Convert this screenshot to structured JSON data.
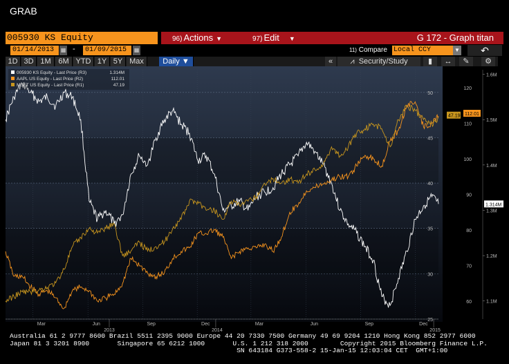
{
  "window": {
    "title": "GRAB"
  },
  "command_bar": {
    "ticker": "005930 KS Equity",
    "actions_num": "96)",
    "actions_label": "Actions",
    "edit_num": "97)",
    "edit_label": "Edit",
    "graph_title": "G 172 - Graph titan"
  },
  "date_bar": {
    "start_date": "01/14/2013",
    "end_date": "01/09/2015",
    "dash": "-",
    "compare_num": "11)",
    "compare_label": "Compare",
    "currency": "Local CCY"
  },
  "toolbar": {
    "periods": [
      "1D",
      "3D",
      "1M",
      "6M",
      "YTD",
      "1Y",
      "5Y",
      "Max"
    ],
    "frequency": "Daily",
    "collapse": "«",
    "security_study": "Security/Study"
  },
  "legend": [
    {
      "label": "005930 KS Equity - Last Price (R3)",
      "value": "1.314M",
      "color": "#ffffff"
    },
    {
      "label": "AAPL US Equity - Last Price (R2)",
      "value": "112.01",
      "color": "#f7941d"
    },
    {
      "label": "MSFT US Equity - Last Price (R1)",
      "value": "47.19",
      "color": "#c8961e"
    }
  ],
  "chart_data": {
    "type": "line",
    "x_axis": {
      "months": [
        "Mar",
        "Jun",
        "Sep",
        "Dec",
        "Mar",
        "Jun",
        "Sep",
        "Dec"
      ],
      "years": [
        "2013",
        "2014",
        "2015"
      ],
      "range": [
        "2013-01-14",
        "2015-01-09"
      ]
    },
    "axis_r1": {
      "series": "MSFT",
      "ticks": [
        25,
        30,
        35,
        40,
        45,
        50
      ],
      "range": [
        25,
        52.5
      ]
    },
    "axis_r2": {
      "series": "AAPL",
      "ticks": [
        60,
        70,
        80,
        90,
        100,
        110,
        120
      ],
      "range": [
        55,
        125
      ]
    },
    "axis_r3": {
      "series": "005930 KS",
      "ticks": [
        "1.1M",
        "1.2M",
        "1.3M",
        "1.4M",
        "1.5M",
        "1.6M"
      ],
      "range": [
        1.06,
        1.61
      ],
      "unit": "M KRW"
    },
    "last_labels": {
      "msft": "47.19",
      "aapl": "112.01",
      "samsung": "1.314M"
    },
    "series": [
      {
        "name": "005930 KS Equity - Last Price (R3)",
        "color": "#ffffff",
        "dates": [
          "2013-01-14",
          "2013-01-28",
          "2013-02-11",
          "2013-02-25",
          "2013-03-11",
          "2013-03-25",
          "2013-04-08",
          "2013-04-22",
          "2013-05-06",
          "2013-05-20",
          "2013-06-03",
          "2013-06-17",
          "2013-07-01",
          "2013-07-15",
          "2013-07-29",
          "2013-08-12",
          "2013-08-26",
          "2013-09-09",
          "2013-09-23",
          "2013-10-07",
          "2013-10-21",
          "2013-11-04",
          "2013-11-18",
          "2013-12-02",
          "2013-12-16",
          "2013-12-30",
          "2014-01-13",
          "2014-01-27",
          "2014-02-10",
          "2014-02-24",
          "2014-03-10",
          "2014-03-24",
          "2014-04-07",
          "2014-04-21",
          "2014-05-05",
          "2014-05-19",
          "2014-06-02",
          "2014-06-16",
          "2014-06-30",
          "2014-07-14",
          "2014-07-28",
          "2014-08-11",
          "2014-08-25",
          "2014-09-08",
          "2014-09-22",
          "2014-10-06",
          "2014-10-20",
          "2014-11-03",
          "2014-11-17",
          "2014-12-01",
          "2014-12-15",
          "2014-12-29",
          "2015-01-09"
        ],
        "values": [
          1.5,
          1.55,
          1.58,
          1.56,
          1.54,
          1.55,
          1.53,
          1.56,
          1.55,
          1.5,
          1.32,
          1.28,
          1.3,
          1.27,
          1.29,
          1.38,
          1.42,
          1.4,
          1.46,
          1.5,
          1.52,
          1.49,
          1.47,
          1.41,
          1.42,
          1.38,
          1.3,
          1.31,
          1.32,
          1.3,
          1.33,
          1.34,
          1.35,
          1.38,
          1.4,
          1.42,
          1.45,
          1.43,
          1.4,
          1.36,
          1.3,
          1.27,
          1.25,
          1.22,
          1.19,
          1.11,
          1.09,
          1.15,
          1.21,
          1.28,
          1.31,
          1.33,
          1.314
        ]
      },
      {
        "name": "AAPL US Equity - Last Price (R2)",
        "color": "#f7941d",
        "dates": [
          "2013-01-14",
          "2013-01-28",
          "2013-02-11",
          "2013-02-25",
          "2013-03-11",
          "2013-03-25",
          "2013-04-08",
          "2013-04-22",
          "2013-05-06",
          "2013-05-20",
          "2013-06-03",
          "2013-06-17",
          "2013-07-01",
          "2013-07-15",
          "2013-07-29",
          "2013-08-12",
          "2013-08-26",
          "2013-09-09",
          "2013-09-23",
          "2013-10-07",
          "2013-10-21",
          "2013-11-04",
          "2013-11-18",
          "2013-12-02",
          "2013-12-16",
          "2013-12-30",
          "2014-01-13",
          "2014-01-27",
          "2014-02-10",
          "2014-02-24",
          "2014-03-10",
          "2014-03-24",
          "2014-04-07",
          "2014-04-21",
          "2014-05-05",
          "2014-05-19",
          "2014-06-02",
          "2014-06-16",
          "2014-06-30",
          "2014-07-14",
          "2014-07-28",
          "2014-08-11",
          "2014-08-25",
          "2014-09-08",
          "2014-09-22",
          "2014-10-06",
          "2014-10-20",
          "2014-11-03",
          "2014-11-17",
          "2014-12-01",
          "2014-12-15",
          "2014-12-29",
          "2015-01-09"
        ],
        "values": [
          74,
          67,
          67,
          64,
          62,
          63,
          61,
          58,
          63,
          64,
          63,
          60,
          61,
          62,
          65,
          72,
          70,
          68,
          67,
          68,
          72,
          74,
          75,
          79,
          79,
          80,
          78,
          72,
          74,
          75,
          75,
          76,
          74,
          78,
          85,
          87,
          91,
          92,
          93,
          94,
          95,
          95,
          98,
          101,
          100,
          98,
          105,
          108,
          115,
          116,
          109,
          110,
          112.01
        ]
      },
      {
        "name": "MSFT US Equity - Last Price (R1)",
        "color": "#c8961e",
        "dates": [
          "2013-01-14",
          "2013-01-28",
          "2013-02-11",
          "2013-02-25",
          "2013-03-11",
          "2013-03-25",
          "2013-04-08",
          "2013-04-22",
          "2013-05-06",
          "2013-05-20",
          "2013-06-03",
          "2013-06-17",
          "2013-07-01",
          "2013-07-15",
          "2013-07-29",
          "2013-08-12",
          "2013-08-26",
          "2013-09-09",
          "2013-09-23",
          "2013-10-07",
          "2013-10-21",
          "2013-11-04",
          "2013-11-18",
          "2013-12-02",
          "2013-12-16",
          "2013-12-30",
          "2014-01-13",
          "2014-01-27",
          "2014-02-10",
          "2014-02-24",
          "2014-03-10",
          "2014-03-24",
          "2014-04-07",
          "2014-04-21",
          "2014-05-05",
          "2014-05-19",
          "2014-06-02",
          "2014-06-16",
          "2014-06-30",
          "2014-07-14",
          "2014-07-28",
          "2014-08-11",
          "2014-08-25",
          "2014-09-08",
          "2014-09-22",
          "2014-10-06",
          "2014-10-20",
          "2014-11-03",
          "2014-11-17",
          "2014-12-01",
          "2014-12-15",
          "2014-12-29",
          "2015-01-09"
        ],
        "values": [
          27,
          27.5,
          28,
          28,
          28.2,
          28.5,
          29,
          30.5,
          33,
          34,
          35,
          34.5,
          35,
          35.5,
          32,
          32.5,
          33.5,
          32.5,
          33,
          33.5,
          35,
          36,
          38,
          38,
          37,
          37,
          36,
          38,
          37.5,
          38,
          38.5,
          40,
          40.5,
          40,
          40.5,
          40,
          41,
          41.5,
          42,
          44,
          43,
          44,
          45.5,
          46,
          46.5,
          46,
          44,
          47,
          48.5,
          48,
          47,
          46.5,
          47.19
        ]
      }
    ]
  },
  "footer": {
    "line1": "Australia 61 2 9777 8600 Brazil 5511 2395 9000 Europe 44 20 7330 7500 Germany 49 69 9204 1210 Hong Kong 852 2977 6000",
    "line2": "Japan 81 3 3201 8900       Singapore 65 6212 1000       U.S. 1 212 318 2000        Copyright 2015 Bloomberg Finance L.P.",
    "line3": "                                                         SN 643184 G373-558-2 15-Jan-15 12:03:04 CET  GMT+1:00"
  }
}
